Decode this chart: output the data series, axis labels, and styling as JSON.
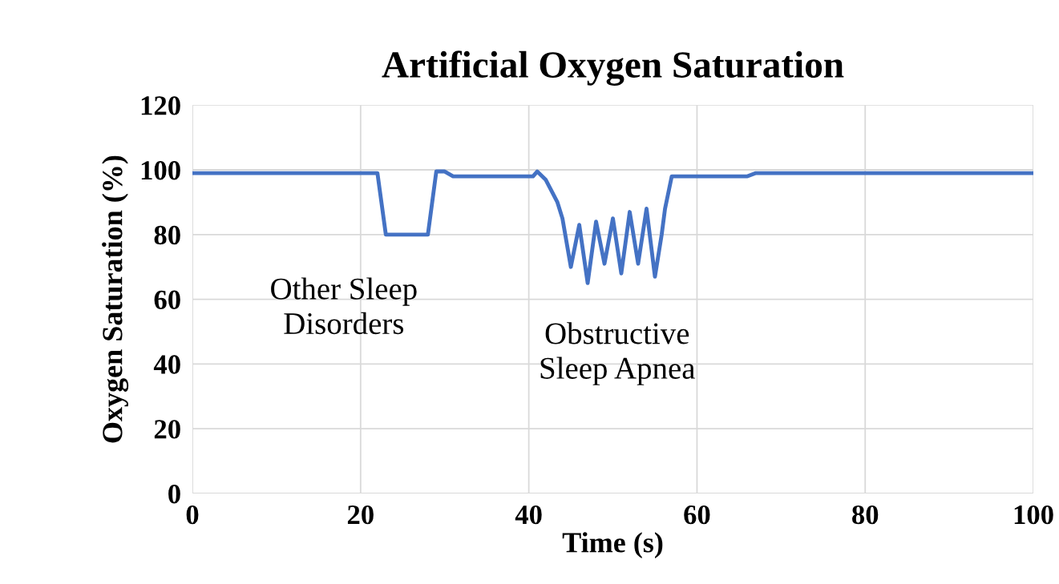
{
  "chart_data": {
    "type": "line",
    "title": "Artificial Oxygen Saturation",
    "xlabel": "Time (s)",
    "ylabel": "Oxygen Saturation (%)",
    "x": [
      0,
      22,
      23,
      28,
      29,
      30,
      31,
      40.5,
      41,
      42,
      43.4,
      44,
      45,
      46,
      47,
      48,
      49,
      50,
      51,
      52,
      53,
      54,
      55,
      55.8,
      56.2,
      57,
      66,
      67,
      100
    ],
    "series": [
      {
        "color": "#4472c4",
        "values": [
          99,
          99,
          80,
          80,
          99.5,
          99.5,
          98,
          98,
          99.5,
          97,
          90,
          85,
          70,
          83,
          65,
          84,
          71,
          85,
          68,
          87,
          71,
          88,
          67,
          80,
          88,
          98,
          98,
          99,
          99
        ]
      }
    ],
    "xlim": [
      0,
      100
    ],
    "xticks": [
      0,
      20,
      40,
      60,
      80,
      100
    ],
    "ylim": [
      0,
      120
    ],
    "yticks": [
      0,
      20,
      40,
      60,
      80,
      100,
      120
    ],
    "grid": true,
    "marker": "none",
    "line_style": "solid",
    "annotations": [
      "Other Sleep\nDisorders",
      "Obstructive\nSleep Apnea"
    ]
  }
}
